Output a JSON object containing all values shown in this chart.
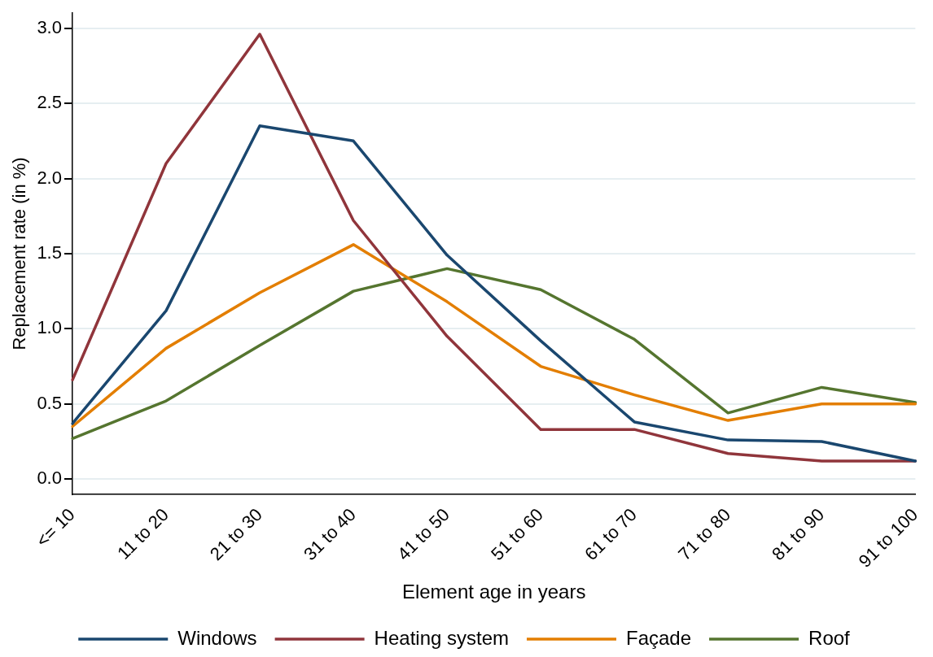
{
  "chart_data": {
    "type": "line",
    "xlabel": "Element age in years",
    "ylabel": "Replacement rate (in %)",
    "categories": [
      "<= 10",
      "11 to 20",
      "21 to 30",
      "31 to 40",
      "41 to 50",
      "51 to 60",
      "61 to 70",
      "71 to 80",
      "81 to 90",
      "91 to 100"
    ],
    "series": [
      {
        "name": "Windows",
        "color": "#1a476f",
        "values": [
          0.37,
          1.12,
          2.35,
          2.25,
          1.49,
          0.92,
          0.38,
          0.26,
          0.25,
          0.12
        ]
      },
      {
        "name": "Heating system",
        "color": "#90353b",
        "values": [
          0.66,
          2.1,
          2.96,
          1.72,
          0.95,
          0.33,
          0.33,
          0.17,
          0.12,
          0.12
        ]
      },
      {
        "name": "Façade",
        "color": "#e37e00",
        "values": [
          0.35,
          0.87,
          1.24,
          1.56,
          1.18,
          0.75,
          0.56,
          0.39,
          0.5,
          0.5
        ]
      },
      {
        "name": "Roof",
        "color": "#55752f",
        "values": [
          0.27,
          0.52,
          0.89,
          1.25,
          1.4,
          1.26,
          0.93,
          0.44,
          0.61,
          0.51
        ]
      }
    ],
    "ylim": [
      -0.1,
      3.1
    ],
    "yticks": [
      {
        "value": 0,
        "label": "0.0"
      },
      {
        "value": 0.5,
        "label": "0.5"
      },
      {
        "value": 1,
        "label": "1.0"
      },
      {
        "value": 1.5,
        "label": "1.5"
      },
      {
        "value": 2,
        "label": "2.0"
      },
      {
        "value": 2.5,
        "label": "2.5"
      },
      {
        "value": 3,
        "label": "3.0"
      }
    ],
    "grid": "y",
    "legend": "bottom",
    "marker": "none",
    "line_style": "solid"
  }
}
